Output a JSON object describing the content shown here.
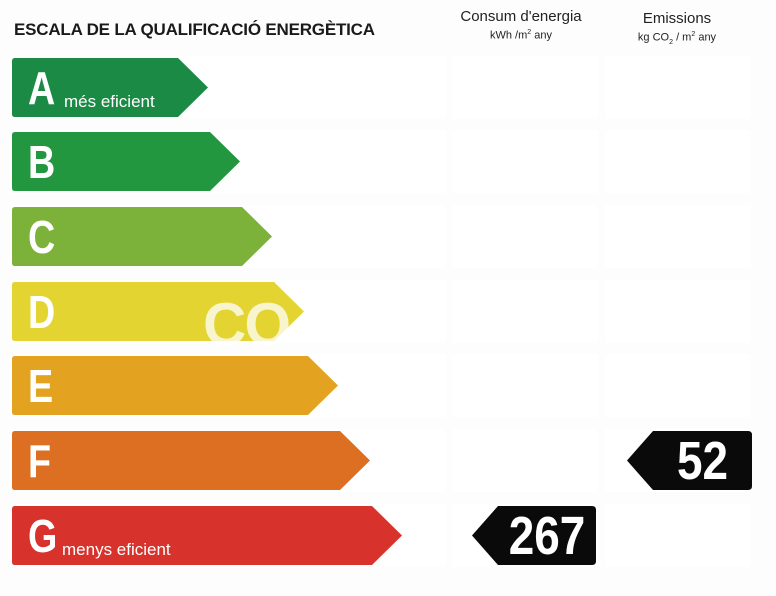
{
  "title": "ESCALA DE LA QUALIFICACIÓ ENERGÈTICA",
  "columns": {
    "consum": {
      "line1": "Consum d'energia",
      "unit_a": "kWh /m",
      "unit_sup": "2",
      "unit_b": " any"
    },
    "emissions": {
      "line1": "Emissions",
      "unit_a": "kg CO",
      "unit_sub": "2",
      "unit_mid": " / m",
      "unit_sup": "2",
      "unit_b": " any"
    }
  },
  "classes": [
    {
      "letter": "A",
      "desc": "més eficient",
      "color": "#1a8a44"
    },
    {
      "letter": "B",
      "desc": "",
      "color": "#23973f"
    },
    {
      "letter": "C",
      "desc": "",
      "color": "#7cb23a"
    },
    {
      "letter": "D",
      "desc": "",
      "color": "#e4d431"
    },
    {
      "letter": "E",
      "desc": "",
      "color": "#e3a320"
    },
    {
      "letter": "F",
      "desc": "",
      "color": "#dc6f22"
    },
    {
      "letter": "G",
      "desc": "menys eficient",
      "color": "#d7322b"
    }
  ],
  "ratings": {
    "consum_value": "267",
    "consum_class": "G",
    "emissions_value": "52",
    "emissions_class": "F"
  },
  "watermark": "CO"
}
